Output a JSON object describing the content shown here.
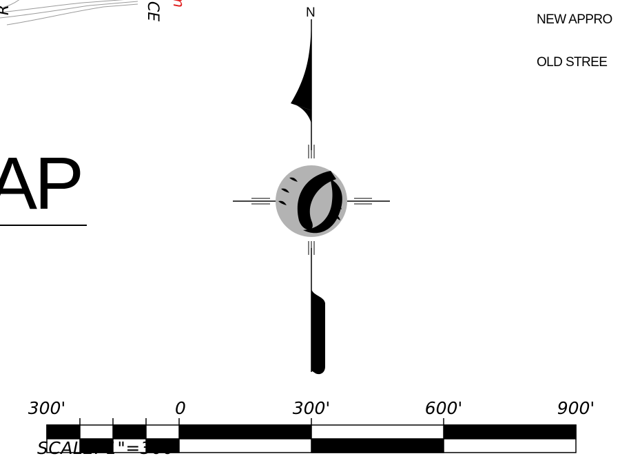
{
  "corner": {
    "road_letter": "R",
    "road_fragment": "CE",
    "red_fragment": "m"
  },
  "title": {
    "text": "AP"
  },
  "north_arrow": {
    "label": "N"
  },
  "legend": {
    "items": [
      {
        "label": "NEW APPRO"
      },
      {
        "label": "OLD STREE"
      }
    ]
  },
  "scale_bar": {
    "ticks": [
      {
        "label": "300'"
      },
      {
        "label": "0"
      },
      {
        "label": "300'"
      },
      {
        "label": "600'"
      },
      {
        "label": "900'"
      }
    ],
    "caption": "SCALE: 1\"=300'"
  },
  "colors": {
    "ink": "#000000",
    "compass_fill": "#b3b3b3",
    "road_lines": "#9a9a9a",
    "accent_red": "#e02020"
  }
}
